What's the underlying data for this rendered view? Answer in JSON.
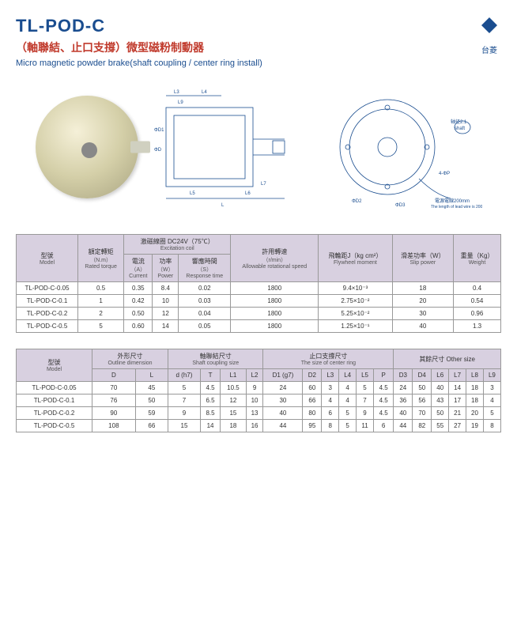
{
  "header": {
    "title": "TL-POD-C",
    "subtitle_cn": "（軸聯結、止口支撐）微型磁粉制動器",
    "subtitle_en": "Micro magnetic powder brake(shaft coupling / center ring install)",
    "logo_text": "台菱"
  },
  "diagram": {
    "labels": [
      "L3",
      "L4",
      "L9",
      "L1",
      "L2",
      "L5",
      "L6",
      "L",
      "L7",
      "ΦD",
      "ΦD1",
      "ΦD3",
      "ΦD4",
      "ΦD2",
      "4-ΦP"
    ],
    "shaft_note_cn": "轴径2:1",
    "shaft_note_en": "shaft",
    "lead_note_cn": "電源電線200mm",
    "lead_note_en": "The length of lead wire is 200 mm"
  },
  "table1": {
    "headers": {
      "model": {
        "cn": "型號",
        "en": "Model"
      },
      "torque": {
        "cn": "額定轉矩",
        "unit": "（N.m）",
        "en": "Rated torque"
      },
      "coil_group": {
        "cn": "激磁線圈 DC24V（75℃）",
        "en": "Excitation coil"
      },
      "current": {
        "cn": "電流",
        "unit": "（A）",
        "en": "Current"
      },
      "power": {
        "cn": "功率",
        "unit": "（W）",
        "en": "Power"
      },
      "response": {
        "cn": "響應時間",
        "unit": "（S）",
        "en": "Response time"
      },
      "speed": {
        "cn": "許用轉速",
        "unit": "（r/min）",
        "en": "Allowable rotational speed"
      },
      "flywheel": {
        "cn": "飛輪距J（kg cm²）",
        "en": "Flywheel moment"
      },
      "slip": {
        "cn": "滑差功率（W）",
        "en": "Slip power"
      },
      "weight": {
        "cn": "重量（Kg）",
        "en": "Weight"
      }
    },
    "rows": [
      {
        "model": "TL-POD-C-0.05",
        "torque": "0.5",
        "current": "0.35",
        "power": "8.4",
        "response": "0.02",
        "speed": "1800",
        "flywheel": "9.4×10⁻³",
        "slip": "18",
        "weight": "0.4"
      },
      {
        "model": "TL-POD-C-0.1",
        "torque": "1",
        "current": "0.42",
        "power": "10",
        "response": "0.03",
        "speed": "1800",
        "flywheel": "2.75×10⁻²",
        "slip": "20",
        "weight": "0.54"
      },
      {
        "model": "TL-POD-C-0.2",
        "torque": "2",
        "current": "0.50",
        "power": "12",
        "response": "0.04",
        "speed": "1800",
        "flywheel": "5.25×10⁻²",
        "slip": "30",
        "weight": "0.96"
      },
      {
        "model": "TL-POD-C-0.5",
        "torque": "5",
        "current": "0.60",
        "power": "14",
        "response": "0.05",
        "speed": "1800",
        "flywheel": "1.25×10⁻¹",
        "slip": "40",
        "weight": "1.3"
      }
    ]
  },
  "table2": {
    "headers": {
      "model": {
        "cn": "型號",
        "en": "Model"
      },
      "outline": {
        "cn": "外形尺寸",
        "en": "Outline dimension"
      },
      "shaft": {
        "cn": "軸聯結尺寸",
        "en": "Shaft coupling size"
      },
      "center": {
        "cn": "止口支撐尺寸",
        "en": "The size of center ring"
      },
      "other": {
        "cn": "其餘尺寸 Other size",
        "en": ""
      }
    },
    "cols": [
      "D",
      "L",
      "d (h7)",
      "T",
      "L1",
      "L2",
      "D1 (g7)",
      "D2",
      "L3",
      "L4",
      "L5",
      "P",
      "D3",
      "D4",
      "L6",
      "L7",
      "L8",
      "L9"
    ],
    "rows": [
      {
        "model": "TL-POD-C-0.05",
        "v": [
          "70",
          "45",
          "5",
          "4.5",
          "10.5",
          "9",
          "24",
          "60",
          "3",
          "4",
          "5",
          "4.5",
          "24",
          "50",
          "40",
          "14",
          "18",
          "3"
        ]
      },
      {
        "model": "TL-POD-C-0.1",
        "v": [
          "76",
          "50",
          "7",
          "6.5",
          "12",
          "10",
          "30",
          "66",
          "4",
          "4",
          "7",
          "4.5",
          "36",
          "56",
          "43",
          "17",
          "18",
          "4"
        ]
      },
      {
        "model": "TL-POD-C-0.2",
        "v": [
          "90",
          "59",
          "9",
          "8.5",
          "15",
          "13",
          "40",
          "80",
          "6",
          "5",
          "9",
          "4.5",
          "40",
          "70",
          "50",
          "21",
          "20",
          "5"
        ]
      },
      {
        "model": "TL-POD-C-0.5",
        "v": [
          "108",
          "66",
          "15",
          "14",
          "18",
          "16",
          "44",
          "95",
          "8",
          "5",
          "11",
          "6",
          "44",
          "82",
          "55",
          "27",
          "19",
          "8"
        ]
      }
    ]
  }
}
